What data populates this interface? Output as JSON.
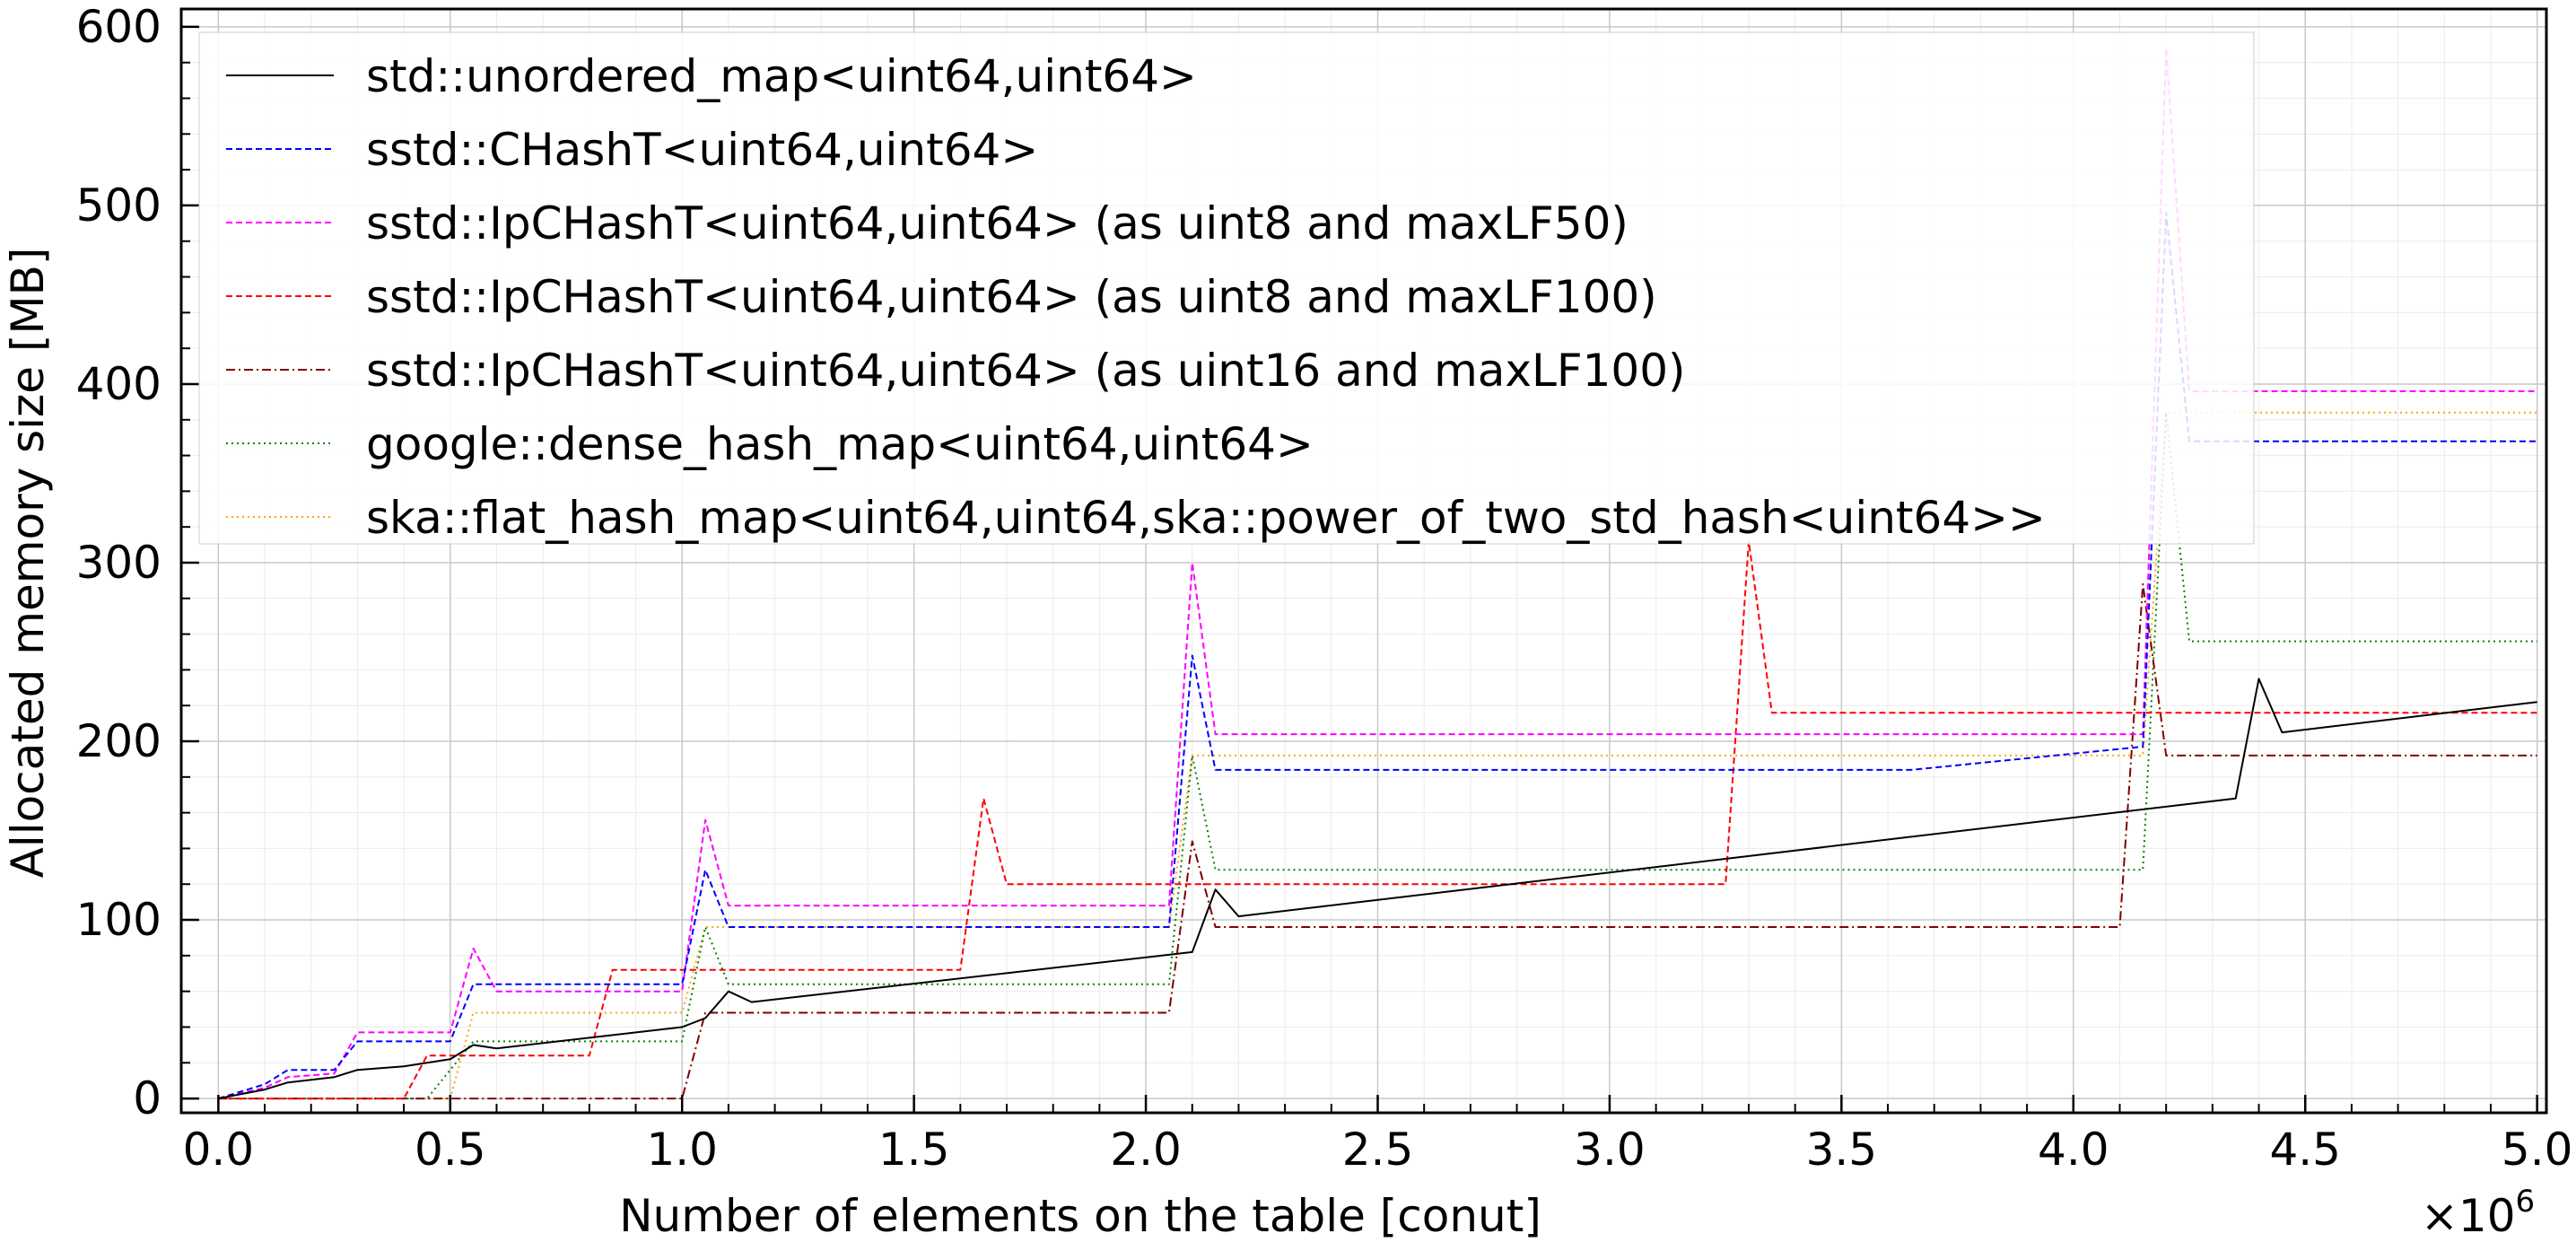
{
  "chart_data": {
    "type": "line",
    "title": "",
    "xlabel": "Number of elements on the table [conut]",
    "ylabel": "Allocated memory size [MB]",
    "x_multiplier_label": "×10",
    "x_multiplier_exponent": "6",
    "xlim": [
      -0.08,
      5.02
    ],
    "ylim": [
      -8,
      610
    ],
    "x_ticks": [
      0.0,
      0.5,
      1.0,
      1.5,
      2.0,
      2.5,
      3.0,
      3.5,
      4.0,
      4.5,
      5.0
    ],
    "x_tick_labels": [
      "0.0",
      "0.5",
      "1.0",
      "1.5",
      "2.0",
      "2.5",
      "3.0",
      "3.5",
      "4.0",
      "4.5",
      "5.0"
    ],
    "y_ticks": [
      0,
      100,
      200,
      300,
      400,
      500,
      600
    ],
    "y_tick_labels": [
      "0",
      "100",
      "200",
      "300",
      "400",
      "500",
      "600"
    ],
    "grid": true,
    "legend_position": "top-left",
    "series": [
      {
        "name": "std::unordered_map<uint64,uint64>",
        "color": "#000000",
        "dash": "solid",
        "points": [
          [
            0,
            0
          ],
          [
            0.1,
            5
          ],
          [
            0.15,
            9
          ],
          [
            0.25,
            12
          ],
          [
            0.3,
            16
          ],
          [
            0.4,
            18
          ],
          [
            0.5,
            22
          ],
          [
            0.55,
            30
          ],
          [
            0.6,
            28
          ],
          [
            1.0,
            40
          ],
          [
            1.05,
            45
          ],
          [
            1.1,
            60
          ],
          [
            1.15,
            54
          ],
          [
            2.1,
            82
          ],
          [
            2.15,
            117
          ],
          [
            2.2,
            102
          ],
          [
            4.35,
            168
          ],
          [
            4.4,
            235
          ],
          [
            4.45,
            205
          ],
          [
            5.0,
            222
          ]
        ]
      },
      {
        "name": "sstd::CHashT<uint64,uint64>",
        "color": "#0000ff",
        "dash": "dashed",
        "points": [
          [
            0,
            0
          ],
          [
            0.1,
            8
          ],
          [
            0.15,
            16
          ],
          [
            0.25,
            16
          ],
          [
            0.3,
            32
          ],
          [
            0.5,
            32
          ],
          [
            0.55,
            64
          ],
          [
            1.0,
            64
          ],
          [
            1.05,
            128
          ],
          [
            1.1,
            96
          ],
          [
            2.05,
            96
          ],
          [
            2.1,
            248
          ],
          [
            2.15,
            184
          ],
          [
            3.65,
            184
          ],
          [
            4.15,
            197
          ],
          [
            4.2,
            496
          ],
          [
            4.25,
            368
          ],
          [
            5.0,
            368
          ]
        ]
      },
      {
        "name": "sstd::IpCHashT<uint64,uint64> (as uint8 and maxLF50)",
        "color": "#ff00ff",
        "dash": "dashed",
        "points": [
          [
            0,
            0
          ],
          [
            0.1,
            6
          ],
          [
            0.15,
            12
          ],
          [
            0.25,
            14
          ],
          [
            0.3,
            37
          ],
          [
            0.5,
            37
          ],
          [
            0.55,
            84
          ],
          [
            0.6,
            60
          ],
          [
            1.0,
            60
          ],
          [
            1.05,
            156
          ],
          [
            1.1,
            108
          ],
          [
            2.05,
            108
          ],
          [
            2.1,
            300
          ],
          [
            2.15,
            204
          ],
          [
            4.15,
            204
          ],
          [
            4.2,
            588
          ],
          [
            4.25,
            396
          ],
          [
            5.0,
            396
          ]
        ]
      },
      {
        "name": "sstd::IpCHashT<uint64,uint64> (as uint8 and maxLF100)",
        "color": "#ff0000",
        "dash": "dashed",
        "points": [
          [
            0,
            0
          ],
          [
            0.4,
            0
          ],
          [
            0.45,
            24
          ],
          [
            0.8,
            24
          ],
          [
            0.85,
            72
          ],
          [
            1.6,
            72
          ],
          [
            1.65,
            168
          ],
          [
            1.7,
            120
          ],
          [
            3.25,
            120
          ],
          [
            3.3,
            312
          ],
          [
            3.35,
            216
          ],
          [
            5.0,
            216
          ]
        ]
      },
      {
        "name": "sstd::IpCHashT<uint64,uint64> (as uint16 and maxLF100)",
        "color": "#800000",
        "dash": "dashdot",
        "points": [
          [
            0,
            0
          ],
          [
            1.0,
            0
          ],
          [
            1.05,
            48
          ],
          [
            2.05,
            48
          ],
          [
            2.1,
            144
          ],
          [
            2.15,
            96
          ],
          [
            4.1,
            96
          ],
          [
            4.15,
            288
          ],
          [
            4.2,
            192
          ],
          [
            5.0,
            192
          ]
        ]
      },
      {
        "name": "google::dense_hash_map<uint64,uint64>",
        "color": "#008000",
        "dash": "dotted",
        "points": [
          [
            0,
            0
          ],
          [
            0.45,
            0
          ],
          [
            0.5,
            16
          ],
          [
            0.55,
            32
          ],
          [
            1.0,
            32
          ],
          [
            1.05,
            96
          ],
          [
            1.1,
            64
          ],
          [
            2.05,
            64
          ],
          [
            2.1,
            192
          ],
          [
            2.15,
            128
          ],
          [
            4.15,
            128
          ],
          [
            4.2,
            384
          ],
          [
            4.25,
            256
          ],
          [
            5.0,
            256
          ]
        ]
      },
      {
        "name": "ska::flat_hash_map<uint64,uint64,ska::power_of_two_std_hash<uint64>>",
        "color": "#ffa500",
        "dash": "dotted",
        "points": [
          [
            0,
            0
          ],
          [
            0.5,
            0
          ],
          [
            0.55,
            48
          ],
          [
            1.0,
            48
          ],
          [
            1.05,
            96
          ],
          [
            2.05,
            96
          ],
          [
            2.1,
            192
          ],
          [
            4.15,
            192
          ],
          [
            4.2,
            384
          ],
          [
            5.0,
            384
          ]
        ]
      }
    ]
  }
}
